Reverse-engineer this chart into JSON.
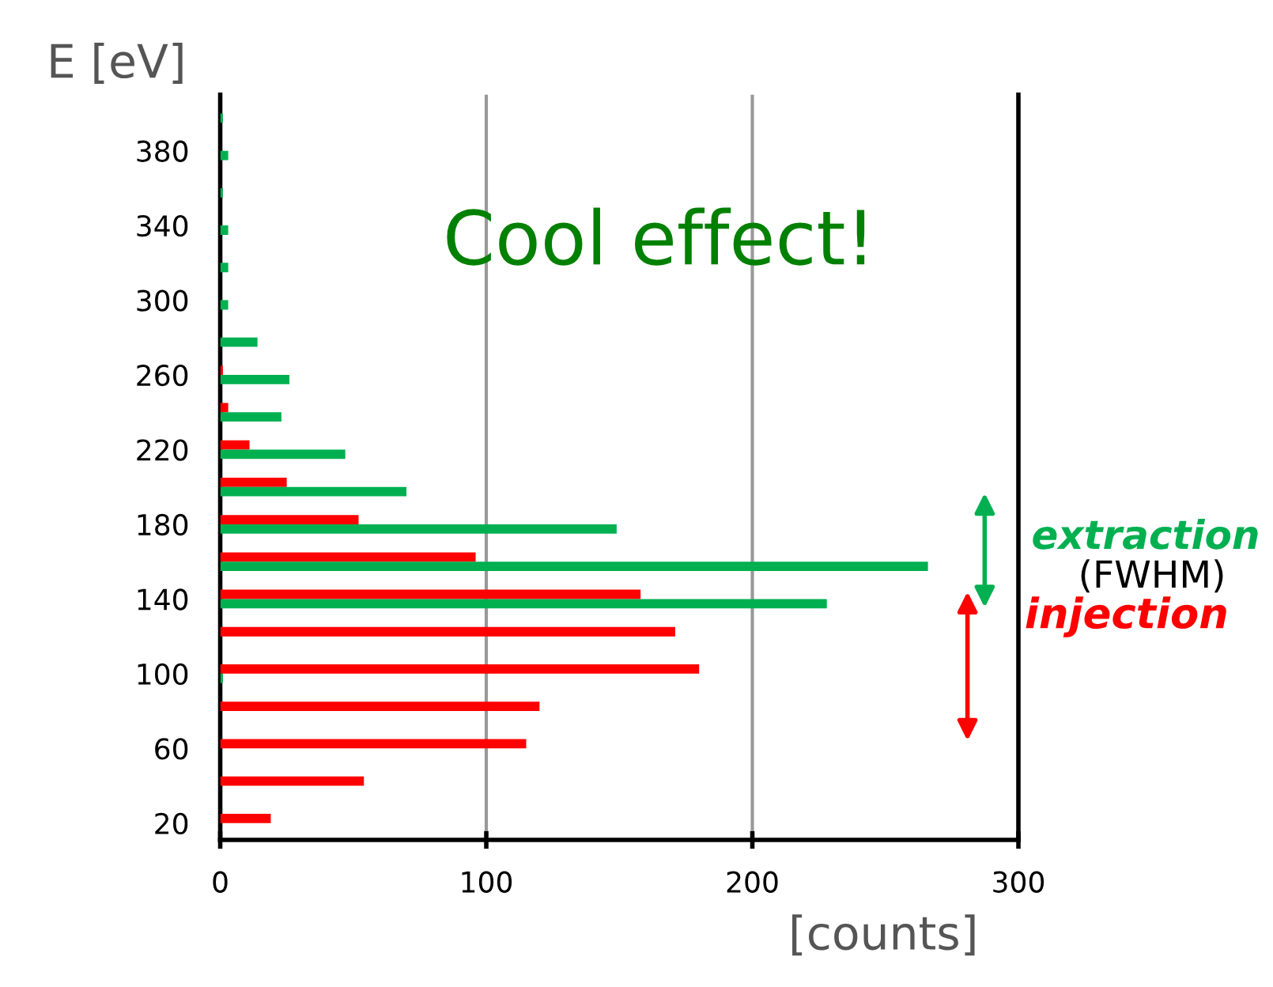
{
  "chart_data": {
    "type": "bar",
    "orientation": "horizontal",
    "ylabel": "E [eV]",
    "xlabel": "[counts]",
    "series": [
      {
        "color": "#ff0000",
        "x": [
          22.5,
          42.5,
          62.5,
          82.5,
          102.5,
          122.5,
          142.5,
          162.5,
          182.5,
          202.5,
          222.5,
          242.5,
          262.5
        ],
        "values": [
          19,
          54,
          115,
          120,
          180,
          171,
          158,
          96,
          52,
          25,
          11,
          3,
          1
        ]
      },
      {
        "color": "#00b050",
        "x": [
          97.5,
          137.5,
          157.5,
          177.5,
          197.5,
          217.5,
          237.5,
          257.5,
          277.5,
          297.5,
          317.5,
          337.5,
          357.5,
          377.5,
          397.5
        ],
        "values": [
          1,
          228,
          266,
          149,
          70,
          47,
          23,
          26,
          14,
          3,
          3,
          3,
          1,
          3,
          1
        ]
      }
    ],
    "xlim": [
      0,
      300
    ],
    "xticks": [
      0,
      100,
      200,
      300
    ],
    "ylim": [
      11,
      410
    ],
    "yticks": [
      20,
      60,
      100,
      140,
      180,
      220,
      260,
      300,
      340,
      380
    ],
    "grid": "x",
    "annotations": [
      "Cool effect!",
      "extraction",
      "(FWHM)",
      "injection"
    ]
  }
}
